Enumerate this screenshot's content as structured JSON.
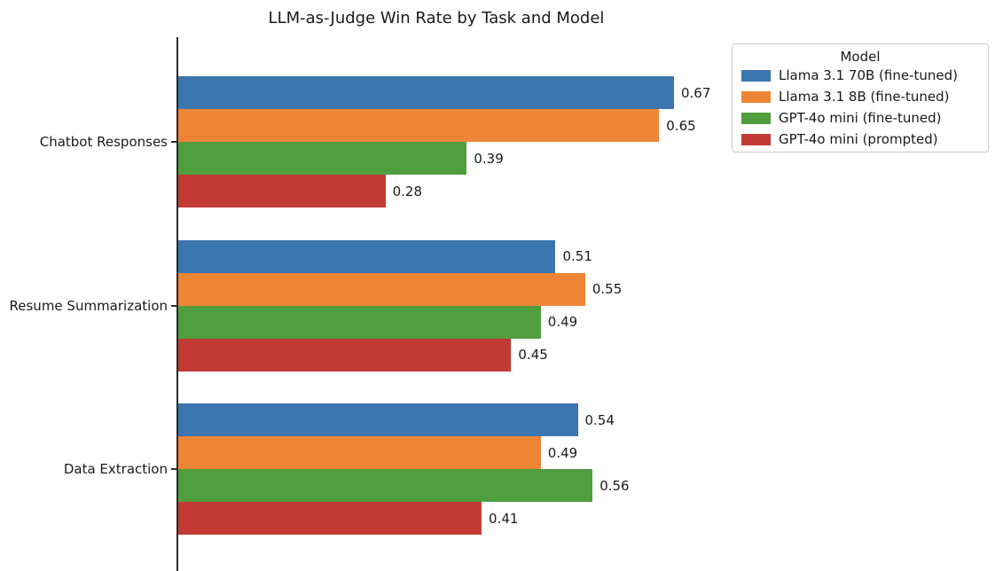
{
  "chart_data": {
    "type": "bar",
    "orientation": "horizontal",
    "title": "LLM-as-Judge Win Rate by Task and Model",
    "categories": [
      "Chatbot Responses",
      "Resume Summarization",
      "Data Extraction"
    ],
    "series": [
      {
        "name": "Llama 3.1 70B (fine-tuned)",
        "color": "#3B76AF",
        "values": [
          0.67,
          0.51,
          0.54
        ]
      },
      {
        "name": "Llama 3.1 8B (fine-tuned)",
        "color": "#EE8536",
        "values": [
          0.65,
          0.55,
          0.49
        ]
      },
      {
        "name": "GPT-4o mini (fine-tuned)",
        "color": "#519E3E",
        "values": [
          0.39,
          0.49,
          0.56
        ]
      },
      {
        "name": "GPT-4o mini (prompted)",
        "color": "#C23B35",
        "values": [
          0.28,
          0.45,
          0.41
        ]
      }
    ],
    "legend": {
      "title": "Model",
      "position": "upper right"
    },
    "xlim": [
      0,
      0.7
    ],
    "value_labels": true,
    "value_label_decimals": 2,
    "grid": false,
    "axis_color": "#2b2b2b",
    "text_color": "#1a1a1a"
  }
}
